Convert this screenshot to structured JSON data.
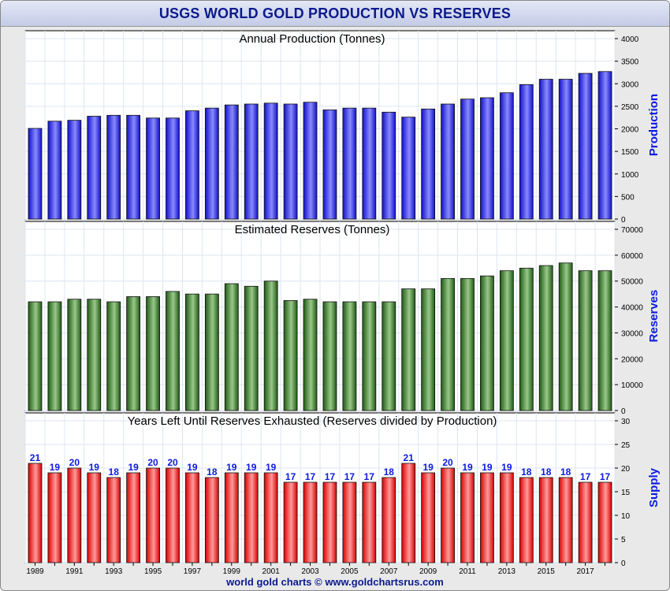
{
  "title": "USGS WORLD GOLD PRODUCTION VS RESERVES",
  "footer": "world gold charts © www.goldchartsrus.com",
  "colors": {
    "production": "#1f1ff0",
    "reserves": "#2d6a1f",
    "years_left": "#ee1111",
    "label_blue": "#0b1adf"
  },
  "chart_data": [
    {
      "type": "bar",
      "title": "Annual Production (Tonnes)",
      "ylabel": "Production",
      "ylim": [
        0,
        4000
      ],
      "yticks": [
        0,
        500,
        1000,
        1500,
        2000,
        2500,
        3000,
        3500,
        4000
      ],
      "categories": [
        "1989",
        "1990",
        "1991",
        "1992",
        "1993",
        "1994",
        "1995",
        "1996",
        "1997",
        "1998",
        "1999",
        "2000",
        "2001",
        "2002",
        "2003",
        "2004",
        "2005",
        "2006",
        "2007",
        "2008",
        "2009",
        "2010",
        "2011",
        "2012",
        "2013",
        "2014",
        "2015",
        "2016",
        "2017",
        "2018"
      ],
      "values": [
        2010,
        2170,
        2190,
        2280,
        2300,
        2300,
        2240,
        2240,
        2400,
        2460,
        2530,
        2550,
        2570,
        2550,
        2590,
        2420,
        2460,
        2460,
        2370,
        2260,
        2440,
        2550,
        2660,
        2690,
        2800,
        2980,
        3100,
        3100,
        3230,
        3270
      ],
      "grid": true
    },
    {
      "type": "bar",
      "title": "Estimated Reserves (Tonnes)",
      "ylabel": "Reserves",
      "ylim": [
        0,
        70000
      ],
      "yticks": [
        0,
        10000,
        20000,
        30000,
        40000,
        50000,
        60000,
        70000
      ],
      "categories": [
        "1989",
        "1990",
        "1991",
        "1992",
        "1993",
        "1994",
        "1995",
        "1996",
        "1997",
        "1998",
        "1999",
        "2000",
        "2001",
        "2002",
        "2003",
        "2004",
        "2005",
        "2006",
        "2007",
        "2008",
        "2009",
        "2010",
        "2011",
        "2012",
        "2013",
        "2014",
        "2015",
        "2016",
        "2017",
        "2018"
      ],
      "values": [
        42000,
        42000,
        43000,
        43000,
        42000,
        44000,
        44000,
        46000,
        45000,
        45000,
        49000,
        48000,
        50000,
        42500,
        43000,
        42000,
        42000,
        42000,
        42000,
        47000,
        47000,
        51000,
        51000,
        52000,
        54000,
        55000,
        56000,
        57000,
        54000,
        54000
      ],
      "grid": true
    },
    {
      "type": "bar",
      "title": "Years Left Until Reserves Exhausted (Reserves divided by Production)",
      "ylabel": "Supply",
      "ylim": [
        0,
        30
      ],
      "yticks": [
        0,
        5,
        10,
        15,
        20,
        25,
        30
      ],
      "categories": [
        "1989",
        "1990",
        "1991",
        "1992",
        "1993",
        "1994",
        "1995",
        "1996",
        "1997",
        "1998",
        "1999",
        "2000",
        "2001",
        "2002",
        "2003",
        "2004",
        "2005",
        "2006",
        "2007",
        "2008",
        "2009",
        "2010",
        "2011",
        "2012",
        "2013",
        "2014",
        "2015",
        "2016",
        "2017",
        "2018"
      ],
      "values": [
        21,
        19,
        20,
        19,
        18,
        19,
        20,
        20,
        19,
        18,
        19,
        19,
        19,
        17,
        17,
        17,
        17,
        17,
        18,
        21,
        19,
        20,
        19,
        19,
        19,
        18,
        18,
        18,
        17,
        17
      ],
      "data_labels": [
        "21",
        "19",
        "20",
        "19",
        "18",
        "19",
        "20",
        "20",
        "19",
        "18",
        "19",
        "19",
        "19",
        "17",
        "17",
        "17",
        "17",
        "17",
        "18",
        "21",
        "19",
        "20",
        "19",
        "19",
        "19",
        "18",
        "18",
        "18",
        "17",
        "17"
      ],
      "xtick_labels": [
        "1989",
        "1991",
        "1993",
        "1995",
        "1997",
        "1999",
        "2001",
        "2003",
        "2005",
        "2007",
        "2009",
        "2011",
        "2013",
        "2015",
        "2017"
      ],
      "grid": true
    }
  ]
}
